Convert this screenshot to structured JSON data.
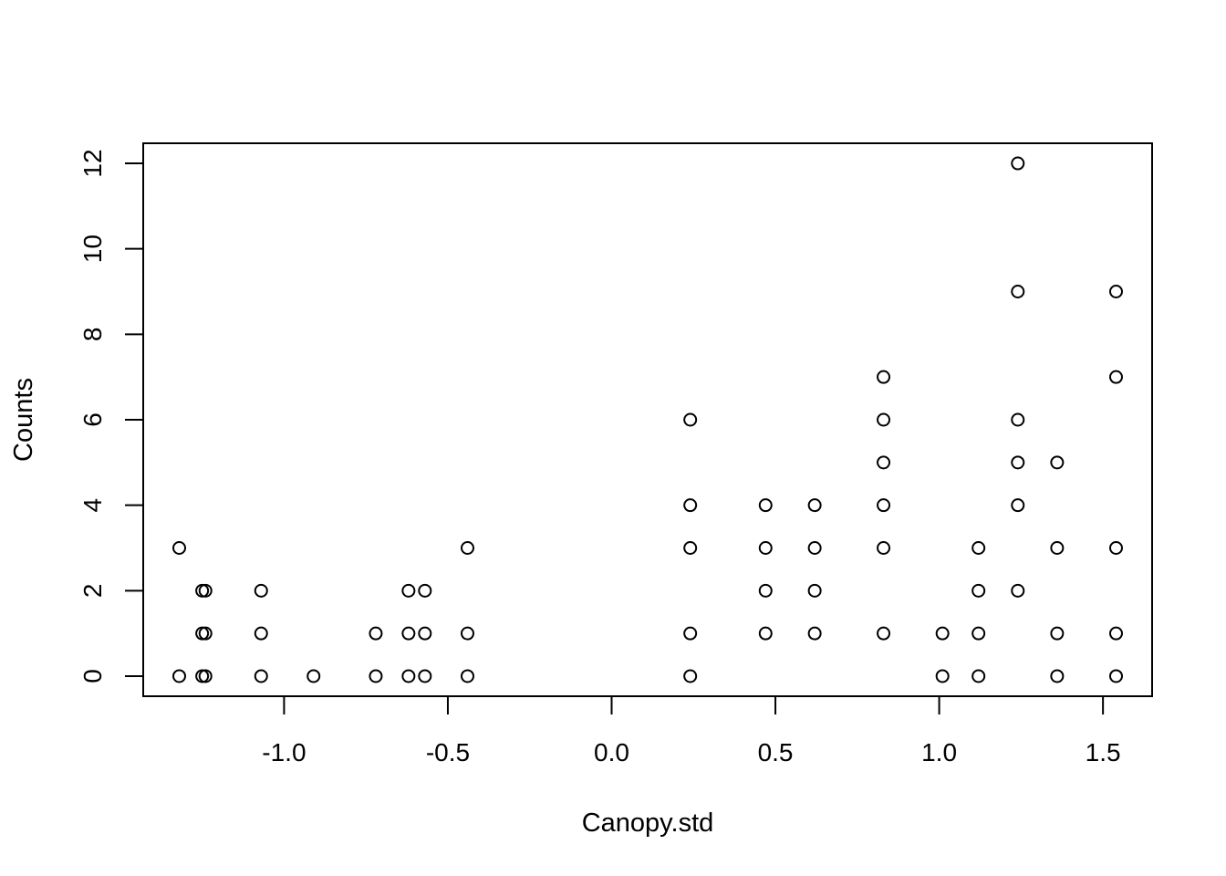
{
  "chart_data": {
    "type": "scatter",
    "title": "",
    "xlabel": "Canopy.std",
    "ylabel": "Counts",
    "xlim": [
      -1.43,
      1.65
    ],
    "ylim": [
      -0.47,
      12.47
    ],
    "xticks": [
      -1.0,
      -0.5,
      0.0,
      0.5,
      1.0,
      1.5
    ],
    "xtick_labels": [
      "-1.0",
      "-0.5",
      "0.0",
      "0.5",
      "1.0",
      "1.5"
    ],
    "yticks": [
      0,
      2,
      4,
      6,
      8,
      10,
      12
    ],
    "ytick_labels": [
      "0",
      "2",
      "4",
      "6",
      "8",
      "10",
      "12"
    ],
    "grid": false,
    "legend": "none",
    "marker": "open-circle",
    "points": [
      {
        "x": -1.32,
        "y": 0
      },
      {
        "x": -1.32,
        "y": 3
      },
      {
        "x": -1.25,
        "y": 0
      },
      {
        "x": -1.25,
        "y": 1
      },
      {
        "x": -1.25,
        "y": 2
      },
      {
        "x": -1.24,
        "y": 0
      },
      {
        "x": -1.24,
        "y": 1
      },
      {
        "x": -1.24,
        "y": 2
      },
      {
        "x": -1.07,
        "y": 0
      },
      {
        "x": -1.07,
        "y": 1
      },
      {
        "x": -1.07,
        "y": 2
      },
      {
        "x": -0.91,
        "y": 0
      },
      {
        "x": -0.72,
        "y": 0
      },
      {
        "x": -0.72,
        "y": 1
      },
      {
        "x": -0.62,
        "y": 0
      },
      {
        "x": -0.62,
        "y": 1
      },
      {
        "x": -0.62,
        "y": 2
      },
      {
        "x": -0.57,
        "y": 0
      },
      {
        "x": -0.57,
        "y": 1
      },
      {
        "x": -0.57,
        "y": 2
      },
      {
        "x": -0.44,
        "y": 0
      },
      {
        "x": -0.44,
        "y": 1
      },
      {
        "x": -0.44,
        "y": 3
      },
      {
        "x": 0.24,
        "y": 0
      },
      {
        "x": 0.24,
        "y": 1
      },
      {
        "x": 0.24,
        "y": 3
      },
      {
        "x": 0.24,
        "y": 4
      },
      {
        "x": 0.24,
        "y": 6
      },
      {
        "x": 0.47,
        "y": 1
      },
      {
        "x": 0.47,
        "y": 2
      },
      {
        "x": 0.47,
        "y": 3
      },
      {
        "x": 0.47,
        "y": 4
      },
      {
        "x": 0.62,
        "y": 1
      },
      {
        "x": 0.62,
        "y": 2
      },
      {
        "x": 0.62,
        "y": 3
      },
      {
        "x": 0.62,
        "y": 4
      },
      {
        "x": 0.83,
        "y": 1
      },
      {
        "x": 0.83,
        "y": 3
      },
      {
        "x": 0.83,
        "y": 4
      },
      {
        "x": 0.83,
        "y": 5
      },
      {
        "x": 0.83,
        "y": 6
      },
      {
        "x": 0.83,
        "y": 7
      },
      {
        "x": 1.01,
        "y": 0
      },
      {
        "x": 1.01,
        "y": 1
      },
      {
        "x": 1.12,
        "y": 0
      },
      {
        "x": 1.12,
        "y": 1
      },
      {
        "x": 1.12,
        "y": 2
      },
      {
        "x": 1.12,
        "y": 3
      },
      {
        "x": 1.24,
        "y": 2
      },
      {
        "x": 1.24,
        "y": 4
      },
      {
        "x": 1.24,
        "y": 5
      },
      {
        "x": 1.24,
        "y": 6
      },
      {
        "x": 1.24,
        "y": 9
      },
      {
        "x": 1.24,
        "y": 12
      },
      {
        "x": 1.36,
        "y": 0
      },
      {
        "x": 1.36,
        "y": 1
      },
      {
        "x": 1.36,
        "y": 3
      },
      {
        "x": 1.36,
        "y": 5
      },
      {
        "x": 1.54,
        "y": 0
      },
      {
        "x": 1.54,
        "y": 1
      },
      {
        "x": 1.54,
        "y": 3
      },
      {
        "x": 1.54,
        "y": 7
      },
      {
        "x": 1.54,
        "y": 9
      }
    ]
  },
  "colors": {
    "background": "#ffffff",
    "foreground": "#000000"
  }
}
